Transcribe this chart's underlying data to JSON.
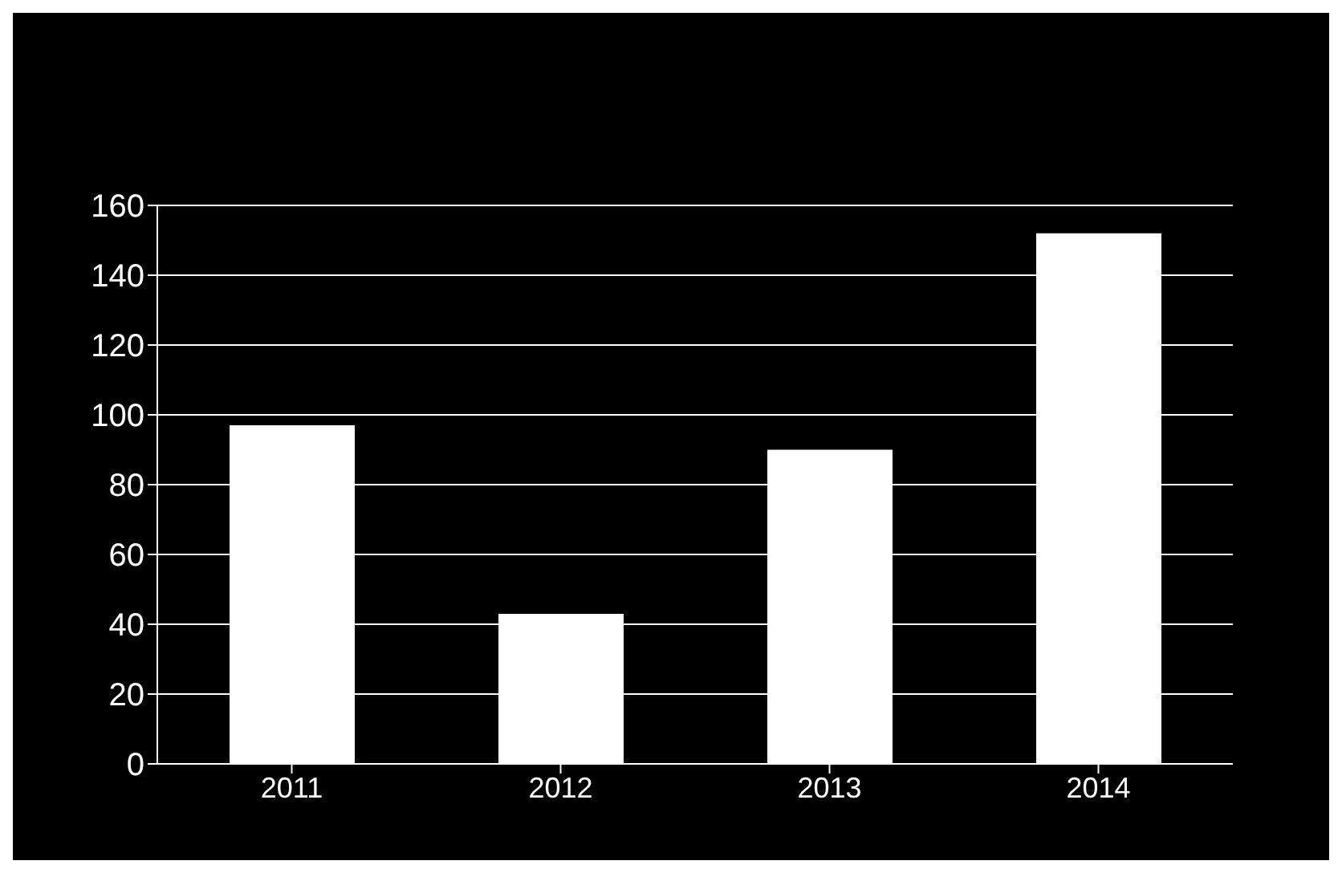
{
  "chart_data": {
    "type": "bar",
    "categories": [
      "2011",
      "2012",
      "2013",
      "2014"
    ],
    "values": [
      97,
      43,
      90,
      152
    ],
    "color": "#ffffff",
    "ylim": [
      0,
      160
    ],
    "yticks": [
      0,
      20,
      40,
      60,
      80,
      100,
      120,
      140,
      160
    ],
    "grid": "y"
  }
}
